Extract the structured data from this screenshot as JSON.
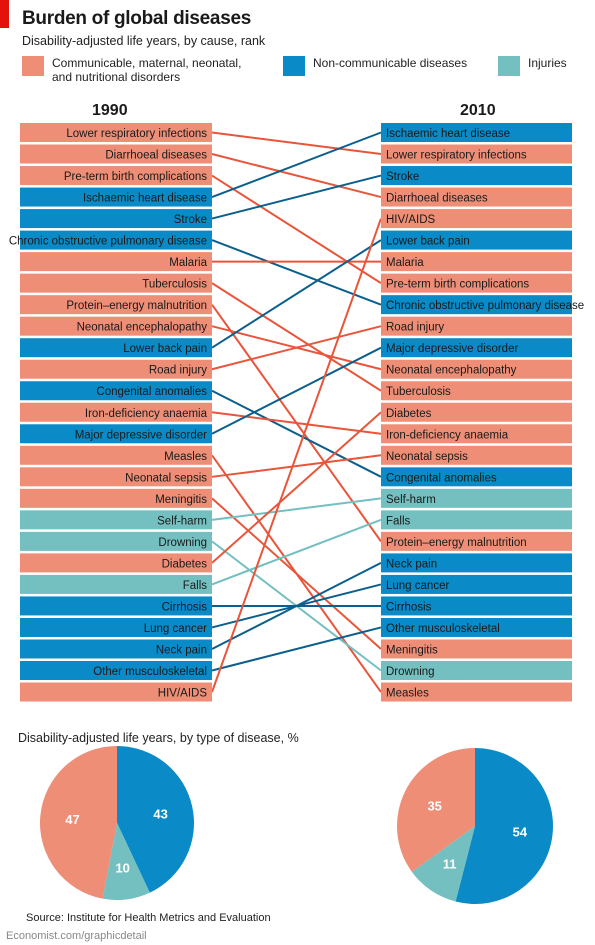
{
  "header": {
    "title": "Burden of global diseases",
    "subtitle": "Disability-adjusted life years, by cause, rank"
  },
  "legend": [
    {
      "label": "Communicable, maternal, neonatal,\nand nutritional disorders",
      "color": "#ee8e76"
    },
    {
      "label": "Non-communicable diseases",
      "color": "#0a8ac6"
    },
    {
      "label": "Injuries",
      "color": "#74bfc0"
    }
  ],
  "colors": {
    "communicable": "#ee8e76",
    "noncommunicable": "#0a8ac6",
    "injuries": "#74bfc0",
    "line_communicable": "#e8553a",
    "line_noncommunicable": "#0b5f8c",
    "line_injuries": "#74bfc0",
    "accent": "#e3120b"
  },
  "chart_data": [
    {
      "type": "bump",
      "title": "Burden of global diseases",
      "subtitle": "Disability-adjusted life years, by cause, rank",
      "columns": [
        "1990",
        "2010"
      ],
      "items": [
        {
          "name": "Lower respiratory infections",
          "cat": "communicable",
          "rank1990": 1,
          "rank2010": 2
        },
        {
          "name": "Diarrhoeal diseases",
          "cat": "communicable",
          "rank1990": 2,
          "rank2010": 4
        },
        {
          "name": "Pre-term birth complications",
          "cat": "communicable",
          "rank1990": 3,
          "rank2010": 8
        },
        {
          "name": "Ischaemic heart disease",
          "cat": "noncommunicable",
          "rank1990": 4,
          "rank2010": 1
        },
        {
          "name": "Stroke",
          "cat": "noncommunicable",
          "rank1990": 5,
          "rank2010": 3
        },
        {
          "name": "Chronic obstructive pulmonary disease",
          "cat": "noncommunicable",
          "rank1990": 6,
          "rank2010": 9
        },
        {
          "name": "Malaria",
          "cat": "communicable",
          "rank1990": 7,
          "rank2010": 7
        },
        {
          "name": "Tuberculosis",
          "cat": "communicable",
          "rank1990": 8,
          "rank2010": 13
        },
        {
          "name": "Protein–energy malnutrition",
          "cat": "communicable",
          "rank1990": 9,
          "rank2010": 20
        },
        {
          "name": "Neonatal encephalopathy",
          "cat": "communicable",
          "rank1990": 10,
          "rank2010": 12
        },
        {
          "name": "Lower back pain",
          "cat": "noncommunicable",
          "rank1990": 11,
          "rank2010": 6
        },
        {
          "name": "Road injury",
          "cat": "communicable",
          "rank1990": 12,
          "rank2010": 10
        },
        {
          "name": "Congenital anomalies",
          "cat": "noncommunicable",
          "rank1990": 13,
          "rank2010": 17
        },
        {
          "name": "Iron-deficiency anaemia",
          "cat": "communicable",
          "rank1990": 14,
          "rank2010": 15
        },
        {
          "name": "Major depressive disorder",
          "cat": "noncommunicable",
          "rank1990": 15,
          "rank2010": 11
        },
        {
          "name": "Measles",
          "cat": "communicable",
          "rank1990": 16,
          "rank2010": 27
        },
        {
          "name": "Neonatal sepsis",
          "cat": "communicable",
          "rank1990": 17,
          "rank2010": 16
        },
        {
          "name": "Meningitis",
          "cat": "communicable",
          "rank1990": 18,
          "rank2010": 25
        },
        {
          "name": "Self-harm",
          "cat": "injuries",
          "rank1990": 19,
          "rank2010": 18
        },
        {
          "name": "Drowning",
          "cat": "injuries",
          "rank1990": 20,
          "rank2010": 26
        },
        {
          "name": "Diabetes",
          "cat": "communicable",
          "rank1990": 21,
          "rank2010": 14
        },
        {
          "name": "Falls",
          "cat": "injuries",
          "rank1990": 22,
          "rank2010": 19
        },
        {
          "name": "Cirrhosis",
          "cat": "noncommunicable",
          "rank1990": 23,
          "rank2010": 23
        },
        {
          "name": "Lung cancer",
          "cat": "noncommunicable",
          "rank1990": 24,
          "rank2010": 22
        },
        {
          "name": "Neck pain",
          "cat": "noncommunicable",
          "rank1990": 25,
          "rank2010": 21
        },
        {
          "name": "Other musculoskeletal",
          "cat": "noncommunicable",
          "rank1990": 26,
          "rank2010": 24
        },
        {
          "name": "HIV/AIDS",
          "cat": "communicable",
          "rank1990": 27,
          "rank2010": 5
        }
      ]
    },
    {
      "type": "pie",
      "title": "Disability-adjusted life years, by type of disease, %",
      "year": "1990",
      "slices": [
        {
          "label": "Non-communicable diseases",
          "cat": "noncommunicable",
          "value": 43
        },
        {
          "label": "Injuries",
          "cat": "injuries",
          "value": 10
        },
        {
          "label": "Communicable, maternal, neonatal, and nutritional disorders",
          "cat": "communicable",
          "value": 47
        }
      ]
    },
    {
      "type": "pie",
      "title": "Disability-adjusted life years, by type of disease, %",
      "year": "2010",
      "slices": [
        {
          "label": "Non-communicable diseases",
          "cat": "noncommunicable",
          "value": 54
        },
        {
          "label": "Injuries",
          "cat": "injuries",
          "value": 11
        },
        {
          "label": "Communicable, maternal, neonatal, and nutritional disorders",
          "cat": "communicable",
          "value": 35
        }
      ]
    }
  ],
  "pies_title": "Disability-adjusted life years, by type of disease, %",
  "source": "Source: Institute for Health Metrics and Evaluation",
  "footer": "Economist.com/graphicdetail"
}
